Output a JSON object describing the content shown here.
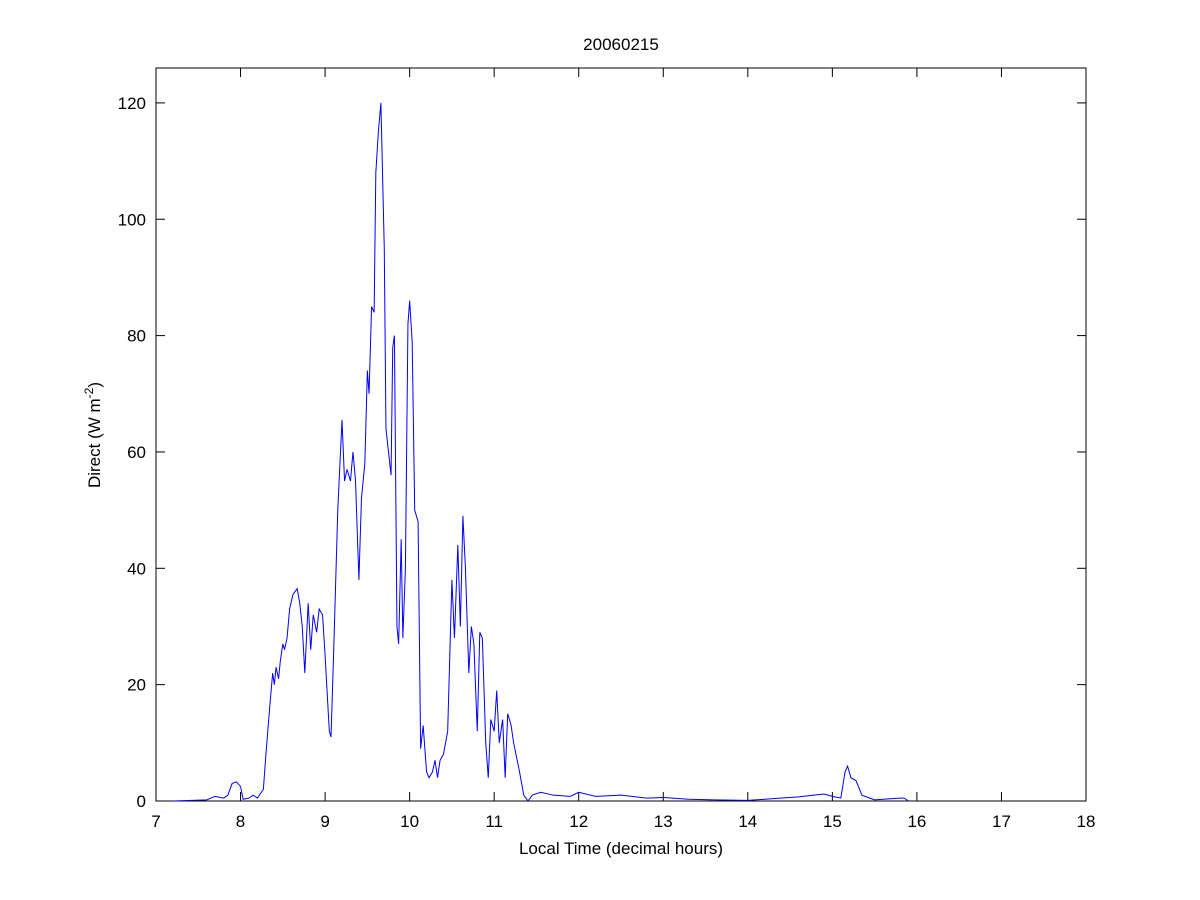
{
  "chart_data": {
    "type": "line",
    "title": "20060215",
    "xlabel": "Local Time (decimal hours)",
    "ylabel": {
      "text": "Direct (W m",
      "sup": "-2",
      "end": ")"
    },
    "xlim": [
      7,
      18
    ],
    "xticks": [
      7,
      8,
      9,
      10,
      11,
      12,
      13,
      14,
      15,
      16,
      17,
      18
    ],
    "ylim": [
      0,
      126
    ],
    "yticks": [
      0,
      20,
      40,
      60,
      80,
      100,
      120
    ],
    "grid": false,
    "series": [
      {
        "color": "#0000ff",
        "x": [
          7.2,
          7.6,
          7.7,
          7.8,
          7.85,
          7.9,
          7.95,
          8.0,
          8.03,
          8.1,
          8.15,
          8.2,
          8.27,
          8.3,
          8.35,
          8.38,
          8.4,
          8.42,
          8.45,
          8.47,
          8.5,
          8.52,
          8.55,
          8.58,
          8.62,
          8.67,
          8.7,
          8.73,
          8.76,
          8.8,
          8.83,
          8.86,
          8.9,
          8.93,
          8.97,
          9.0,
          9.05,
          9.07,
          9.1,
          9.15,
          9.2,
          9.23,
          9.26,
          9.3,
          9.33,
          9.36,
          9.4,
          9.43,
          9.47,
          9.5,
          9.52,
          9.55,
          9.58,
          9.6,
          9.63,
          9.66,
          9.7,
          9.72,
          9.75,
          9.78,
          9.8,
          9.82,
          9.85,
          9.87,
          9.9,
          9.92,
          9.95,
          9.98,
          10.0,
          10.03,
          10.06,
          10.1,
          10.13,
          10.16,
          10.2,
          10.23,
          10.27,
          10.3,
          10.33,
          10.36,
          10.4,
          10.45,
          10.5,
          10.53,
          10.57,
          10.6,
          10.63,
          10.66,
          10.7,
          10.73,
          10.76,
          10.8,
          10.83,
          10.86,
          10.9,
          10.93,
          10.96,
          11.0,
          11.03,
          11.06,
          11.1,
          11.13,
          11.16,
          11.2,
          11.23,
          11.3,
          11.35,
          11.4,
          11.45,
          11.55,
          11.7,
          11.9,
          12.0,
          12.2,
          12.5,
          12.8,
          13.0,
          13.3,
          13.6,
          14.0,
          14.3,
          14.6,
          14.9,
          15.0,
          15.1,
          15.15,
          15.18,
          15.22,
          15.28,
          15.35,
          15.5,
          15.8,
          15.85,
          15.9
        ],
        "values": [
          0,
          0.2,
          0.8,
          0.5,
          1,
          3,
          3.3,
          2.5,
          0.3,
          0.5,
          1,
          0.5,
          2,
          8,
          17,
          22,
          20,
          23,
          21,
          24,
          27,
          26,
          28,
          33,
          35.5,
          36.5,
          34,
          30,
          22,
          34,
          26,
          32,
          29,
          33,
          32,
          25,
          12,
          11,
          25,
          50,
          65.5,
          55,
          57,
          55,
          60,
          55,
          38,
          52,
          58,
          74,
          70,
          85,
          84,
          108,
          115,
          120,
          95,
          64,
          60,
          56,
          78,
          80,
          30,
          27,
          45,
          28,
          40,
          82,
          86,
          79,
          50,
          48,
          9,
          13,
          5,
          4,
          5,
          7,
          4,
          7,
          8,
          12,
          38,
          28,
          44,
          30,
          49,
          40,
          22,
          30,
          27,
          12,
          29,
          28,
          10,
          4,
          14,
          12,
          19,
          10,
          14,
          4,
          15,
          13,
          10,
          5,
          1,
          0,
          1,
          1.5,
          1,
          0.8,
          1.5,
          0.8,
          1,
          0.5,
          0.6,
          0.3,
          0.2,
          0.1,
          0.4,
          0.7,
          1.2,
          0.8,
          0.5,
          5,
          6,
          4,
          3.5,
          1,
          0.2,
          0.5,
          0.5,
          0
        ]
      }
    ]
  }
}
